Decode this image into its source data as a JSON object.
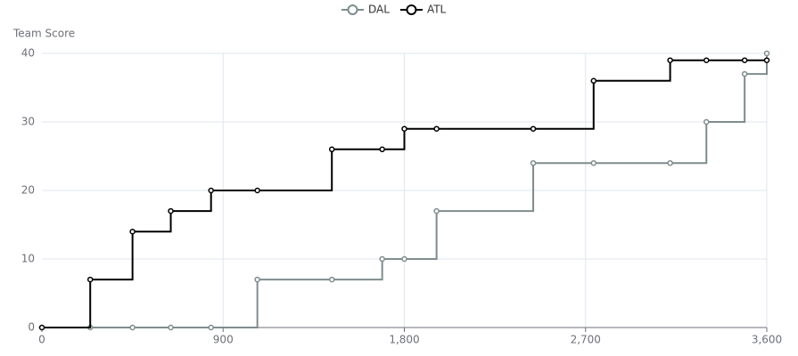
{
  "chart_data": {
    "type": "step-line",
    "y_label": "Team Score",
    "x": [
      0,
      240,
      450,
      640,
      840,
      1070,
      1440,
      1690,
      1800,
      1960,
      2440,
      2740,
      3120,
      3300,
      3490,
      3600
    ],
    "series": [
      {
        "name": "DAL",
        "color": "#7f8c8d",
        "values": [
          0,
          0,
          0,
          0,
          0,
          7,
          7,
          10,
          10,
          17,
          24,
          24,
          24,
          30,
          37,
          40
        ]
      },
      {
        "name": "ATL",
        "color": "#000000",
        "values": [
          0,
          7,
          14,
          17,
          20,
          20,
          26,
          26,
          29,
          29,
          29,
          36,
          39,
          39,
          39,
          39
        ]
      }
    ],
    "xlim": [
      0,
      3600
    ],
    "xticks": [
      0,
      900,
      {
        "value": 1800,
        "label": "1,800"
      },
      {
        "value": 2700,
        "label": "2,700"
      },
      {
        "value": 3600,
        "label": "3,600"
      }
    ],
    "ylim": [
      0,
      40
    ],
    "yticks": [
      0,
      10,
      20,
      30,
      40
    ],
    "grid": true,
    "legend": "top"
  }
}
